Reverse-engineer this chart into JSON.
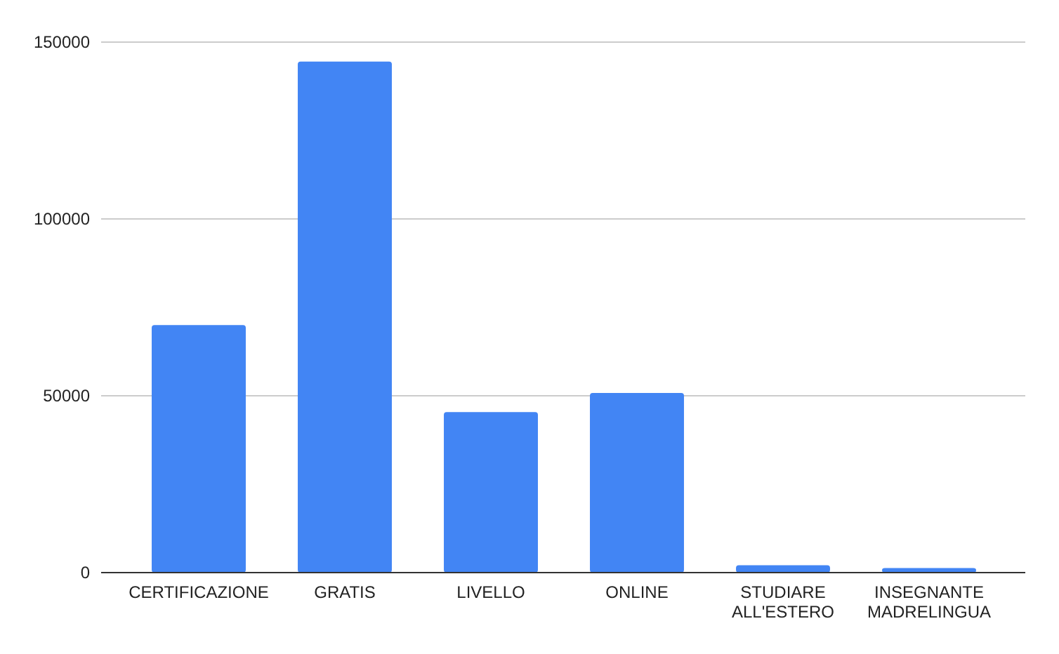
{
  "chart_data": {
    "type": "bar",
    "categories": [
      "CERTIFICAZIONE",
      "GRATIS",
      "LIVELLO",
      "ONLINE",
      "STUDIARE ALL'ESTERO",
      "INSEGNANTE MADRELINGUA"
    ],
    "values": [
      70000,
      144500,
      45400,
      50800,
      2100,
      1300
    ],
    "color": "#4285f4",
    "ylim": [
      0,
      150000
    ],
    "yticks": [
      0,
      50000,
      100000,
      150000
    ],
    "grid": "y"
  }
}
